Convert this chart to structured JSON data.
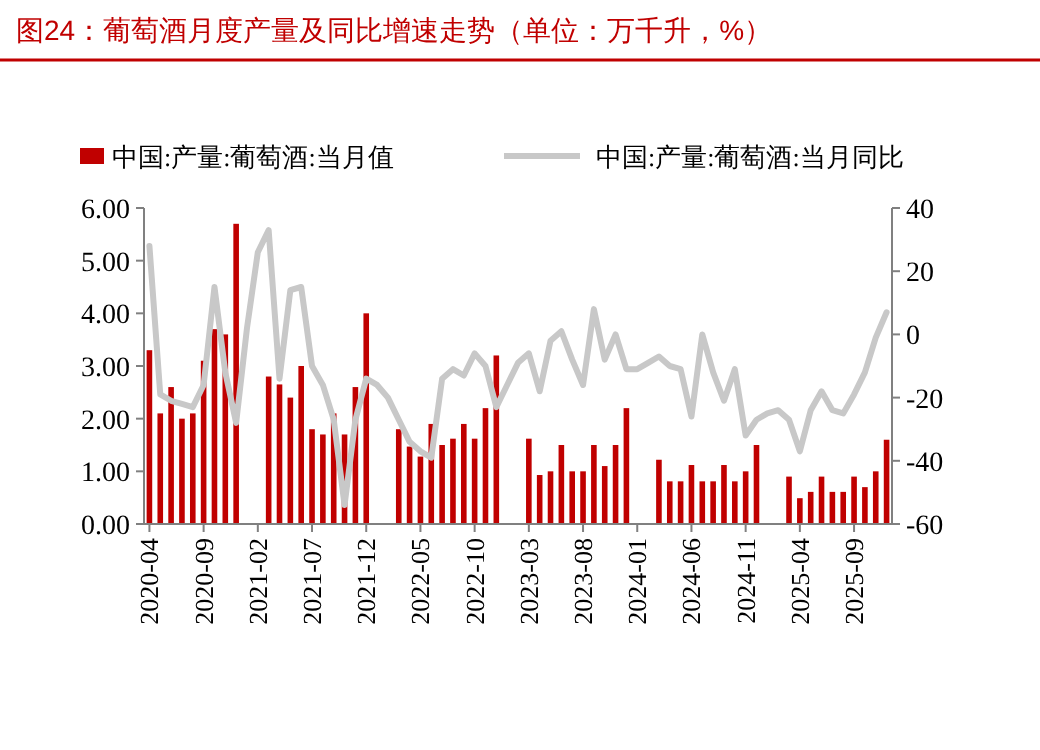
{
  "chart_data": {
    "type": "bar",
    "title": "图24：葡萄酒月度产量及同比增速走势（单位：万千升，%）",
    "categories": [
      "2020-04",
      null,
      null,
      null,
      null,
      "2020-09",
      null,
      null,
      null,
      null,
      "2021-02",
      null,
      null,
      null,
      null,
      "2021-07",
      null,
      null,
      null,
      null,
      "2021-12",
      null,
      null,
      null,
      null,
      "2022-05",
      null,
      null,
      null,
      null,
      "2022-10",
      null,
      null,
      null,
      null,
      "2023-03",
      null,
      null,
      null,
      null,
      "2023-08",
      null,
      null,
      null,
      null,
      "2024-01",
      null,
      null,
      null,
      null,
      "2024-06",
      null,
      null,
      null,
      null,
      "2024-11",
      null,
      null,
      null,
      null,
      "2025-04",
      null,
      null,
      null,
      null,
      "2025-09",
      null,
      null,
      null
    ],
    "series": [
      {
        "name": "中国:产量:葡萄酒:当月值",
        "color": "#c00000",
        "values": [
          3.3,
          2.1,
          2.6,
          2.0,
          2.1,
          3.1,
          3.7,
          3.6,
          5.7,
          null,
          null,
          2.8,
          2.65,
          2.4,
          3.0,
          1.8,
          1.7,
          2.1,
          1.7,
          2.6,
          4.0,
          null,
          null,
          1.8,
          1.47,
          1.28,
          1.9,
          1.5,
          1.62,
          1.9,
          1.62,
          2.2,
          3.2,
          null,
          null,
          1.62,
          0.93,
          1.0,
          1.5,
          1.0,
          1.0,
          1.5,
          1.1,
          1.5,
          2.2,
          null,
          null,
          1.22,
          0.81,
          0.81,
          1.12,
          0.81,
          0.81,
          1.12,
          0.81,
          1.0,
          1.5,
          null,
          null,
          0.9,
          0.49,
          0.61,
          0.9,
          0.61,
          0.61,
          0.9,
          0.7,
          1.0,
          1.6
        ]
      },
      {
        "name": "中国:产量:葡萄酒:当月同比",
        "type": "line",
        "axis": "y2",
        "color": "#c8c8c8",
        "values": [
          28,
          -19,
          -21,
          -22,
          -23,
          -16,
          15,
          -12,
          -28,
          2,
          26,
          33,
          -14,
          14,
          15,
          -10,
          -16,
          -27,
          -54,
          -27,
          -14,
          -16,
          -20,
          -27,
          -34,
          -37,
          -39,
          -14,
          -11,
          -13,
          -6,
          -10,
          -23,
          -16,
          -9,
          -6,
          -18,
          -2,
          1,
          -8,
          -16,
          8,
          -8,
          0,
          -11,
          -11,
          -9,
          -7,
          -10,
          -11,
          -26,
          0,
          -12,
          -21,
          -11,
          -32,
          -27,
          -25,
          -24,
          -27,
          -37,
          -24,
          -18,
          -24,
          -25,
          -19,
          -12,
          -1,
          7
        ]
      }
    ],
    "ylim": [
      0,
      6
    ],
    "yticks": [
      {
        "value": 0,
        "label": "0.00"
      },
      {
        "value": 1,
        "label": "1.00"
      },
      {
        "value": 2,
        "label": "2.00"
      },
      {
        "value": 3,
        "label": "3.00"
      },
      {
        "value": 4,
        "label": "4.00"
      },
      {
        "value": 5,
        "label": "5.00"
      },
      {
        "value": 6,
        "label": "6.00"
      }
    ],
    "y2lim": [
      -60,
      40
    ],
    "y2ticks": [
      -60,
      -40,
      -20,
      0,
      20,
      40
    ],
    "legend": "top",
    "grid": false
  }
}
